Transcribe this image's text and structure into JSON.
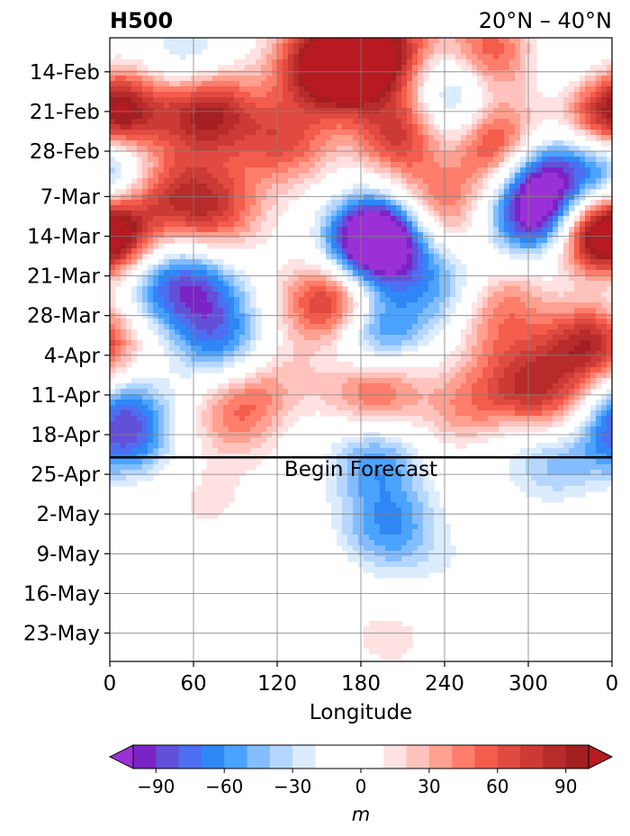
{
  "chart_data": {
    "type": "heatmap",
    "title_left": "H500",
    "title_right": "20°N – 40°N",
    "xlabel": "Longitude",
    "ylabel": "",
    "x_ticks": [
      "0",
      "60",
      "120",
      "180",
      "240",
      "300",
      "0"
    ],
    "x_tick_values": [
      0,
      60,
      120,
      180,
      240,
      300,
      360
    ],
    "xlim": [
      0,
      360
    ],
    "y_ticks": [
      "14-Feb",
      "21-Feb",
      "28-Feb",
      "7-Mar",
      "14-Mar",
      "21-Mar",
      "28-Mar",
      "4-Apr",
      "11-Apr",
      "18-Apr",
      "25-Apr",
      "2-May",
      "9-May",
      "16-May",
      "23-May"
    ],
    "y_start_date": "2024-02-08",
    "y_end_date": "2024-05-28",
    "forecast_start": "2024-04-22",
    "forecast_label": "Begin Forecast",
    "grid": true,
    "colorbar": {
      "label": "m",
      "ticks": [
        -90,
        -60,
        -30,
        0,
        30,
        60,
        90
      ],
      "tick_labels": [
        "−90",
        "−60",
        "−30",
        "0",
        "30",
        "60",
        "90"
      ],
      "levels": [
        -100,
        -90,
        -80,
        -70,
        -60,
        -50,
        -40,
        -30,
        -20,
        -10,
        10,
        20,
        30,
        40,
        50,
        60,
        70,
        80,
        90,
        100
      ],
      "colors": [
        "#7a24c8",
        "#6250d8",
        "#4d6ef0",
        "#2f86f5",
        "#4ba3ff",
        "#84bdff",
        "#b5d7ff",
        "#dcecff",
        "#ffffff",
        "#ffffff",
        "#ffe1e1",
        "#ffc2bd",
        "#ffa090",
        "#ff7d6b",
        "#f45c4c",
        "#e04a40",
        "#cc3a35",
        "#b82b2b",
        "#a31f22"
      ],
      "color_under": "#9b30d6",
      "color_over": "#b81a22"
    },
    "anomalies": [
      {
        "lon": 10,
        "date": "2024-02-21",
        "value": 70
      },
      {
        "lon": 70,
        "date": "2024-02-21",
        "value": 95
      },
      {
        "lon": 75,
        "date": "2024-03-09",
        "value": 65
      },
      {
        "lon": 40,
        "date": "2024-03-06",
        "value": 55
      },
      {
        "lon": 150,
        "date": "2024-02-12",
        "value": 70
      },
      {
        "lon": 125,
        "date": "2024-02-26",
        "value": 60
      },
      {
        "lon": 170,
        "date": "2024-02-14",
        "value": 90
      },
      {
        "lon": 215,
        "date": "2024-02-25",
        "value": 100
      },
      {
        "lon": 200,
        "date": "2024-02-10",
        "value": 80
      },
      {
        "lon": 270,
        "date": "2024-02-11",
        "value": 70
      },
      {
        "lon": 275,
        "date": "2024-02-27",
        "value": 95
      },
      {
        "lon": 235,
        "date": "2024-03-09",
        "value": 55
      },
      {
        "lon": 350,
        "date": "2024-03-14",
        "value": 90
      },
      {
        "lon": 355,
        "date": "2024-02-22",
        "value": 55
      },
      {
        "lon": 0,
        "date": "2024-03-14",
        "value": 65
      },
      {
        "lon": 160,
        "date": "2024-03-26",
        "value": 95
      },
      {
        "lon": 270,
        "date": "2024-03-28",
        "value": 65
      },
      {
        "lon": 345,
        "date": "2024-04-02",
        "value": 90
      },
      {
        "lon": 300,
        "date": "2024-04-09",
        "value": 65
      },
      {
        "lon": 190,
        "date": "2024-04-10",
        "value": 65
      },
      {
        "lon": 95,
        "date": "2024-04-14",
        "value": 55
      },
      {
        "lon": 260,
        "date": "2024-04-14",
        "value": 50
      },
      {
        "lon": 140,
        "date": "2024-04-06",
        "value": 40
      },
      {
        "lon": 325,
        "date": "2024-04-15",
        "value": 40
      },
      {
        "lon": 195,
        "date": "2024-03-14",
        "value": -105
      },
      {
        "lon": 185,
        "date": "2024-03-16",
        "value": -70
      },
      {
        "lon": 305,
        "date": "2024-03-11",
        "value": -100
      },
      {
        "lon": 310,
        "date": "2024-03-03",
        "value": -85
      },
      {
        "lon": 0,
        "date": "2024-03-02",
        "value": -75
      },
      {
        "lon": 240,
        "date": "2024-02-25",
        "value": -65
      },
      {
        "lon": 245,
        "date": "2024-02-16",
        "value": -55
      },
      {
        "lon": 55,
        "date": "2024-02-12",
        "value": -40
      },
      {
        "lon": 65,
        "date": "2024-03-24",
        "value": -60
      },
      {
        "lon": 35,
        "date": "2024-03-22",
        "value": -50
      },
      {
        "lon": 80,
        "date": "2024-04-02",
        "value": -60
      },
      {
        "lon": 190,
        "date": "2024-03-31",
        "value": -80
      },
      {
        "lon": 255,
        "date": "2024-03-27",
        "value": -40
      },
      {
        "lon": 235,
        "date": "2024-03-22",
        "value": -35
      },
      {
        "lon": 10,
        "date": "2024-04-14",
        "value": -55
      },
      {
        "lon": 15,
        "date": "2024-04-21",
        "value": -45
      },
      {
        "lon": 190,
        "date": "2024-04-22",
        "value": -55
      },
      {
        "lon": 320,
        "date": "2024-04-22",
        "value": -50
      },
      {
        "lon": 145,
        "date": "2024-04-05",
        "value": -35
      },
      {
        "lon": 275,
        "date": "2024-04-18",
        "value": -25
      },
      {
        "lon": 340,
        "date": "2024-03-22",
        "value": -25
      },
      {
        "lon": 330,
        "date": "2024-02-13",
        "value": -25
      },
      {
        "lon": 355,
        "date": "2024-04-15",
        "value": -20
      },
      {
        "lon": 120,
        "date": "2024-04-16",
        "value": -15
      },
      {
        "lon": 110,
        "date": "2024-04-09",
        "value": 15
      },
      {
        "lon": 295,
        "date": "2024-03-22",
        "value": 20
      },
      {
        "lon": 205,
        "date": "2024-05-03",
        "value": -40
      },
      {
        "lon": 200,
        "date": "2024-05-08",
        "value": -20
      },
      {
        "lon": 165,
        "date": "2024-05-05",
        "value": -15
      },
      {
        "lon": 290,
        "date": "2024-05-10",
        "value": -18
      },
      {
        "lon": 320,
        "date": "2024-05-20",
        "value": -15
      },
      {
        "lon": 245,
        "date": "2024-05-13",
        "value": -12
      },
      {
        "lon": 70,
        "date": "2024-04-29",
        "value": 12
      },
      {
        "lon": 15,
        "date": "2024-04-27",
        "value": 12
      },
      {
        "lon": 200,
        "date": "2024-05-23",
        "value": 14
      },
      {
        "lon": 275,
        "date": "2024-05-21",
        "value": 14
      },
      {
        "lon": 145,
        "date": "2024-05-09",
        "value": 12
      }
    ]
  }
}
